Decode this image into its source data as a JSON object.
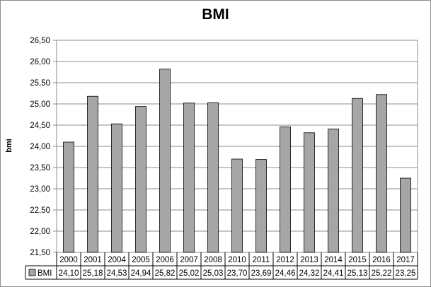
{
  "chart_data": {
    "type": "bar",
    "title": "BMI",
    "xlabel": "",
    "ylabel": "bmi",
    "ylim": [
      21.5,
      26.5
    ],
    "ytick_step": 0.5,
    "ytick_labels": [
      "21,50",
      "22,00",
      "22,50",
      "23,00",
      "23,50",
      "24,00",
      "24,50",
      "25,00",
      "25,50",
      "26,00",
      "26,50"
    ],
    "grid": true,
    "legend": "data table",
    "categories": [
      "2000",
      "2001",
      "2004",
      "2005",
      "2006",
      "2007",
      "2008",
      "2010",
      "2011",
      "2012",
      "2013",
      "2014",
      "2015",
      "2016",
      "2017"
    ],
    "series": [
      {
        "name": "BMI",
        "color": "#a6a6a6",
        "values": [
          24.1,
          25.18,
          24.53,
          24.94,
          25.82,
          25.02,
          25.03,
          23.7,
          23.69,
          24.46,
          24.32,
          24.41,
          25.13,
          25.22,
          23.25
        ],
        "value_labels": [
          "24,10",
          "25,18",
          "24,53",
          "24,94",
          "25,82",
          "25,02",
          "25,03",
          "23,70",
          "23,69",
          "24,46",
          "24,32",
          "24,41",
          "25,13",
          "25,22",
          "23,25"
        ]
      }
    ]
  }
}
